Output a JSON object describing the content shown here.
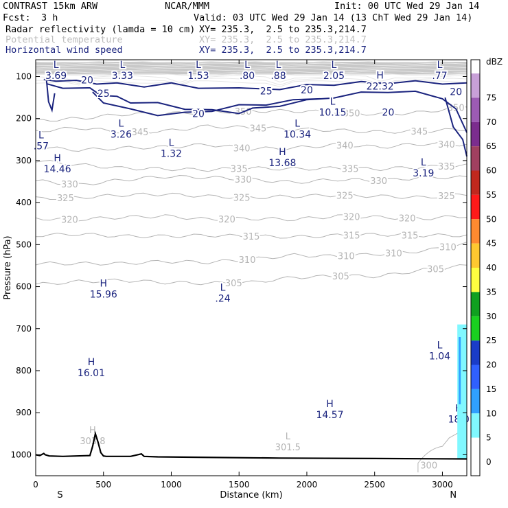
{
  "header": {
    "model": "CONTRAST 15km ARW",
    "source": "NCAR/MMM",
    "init": "Init: 00 UTC Wed 29 Jan 14",
    "fcst_label": "Fcst:",
    "fcst_value": "3 h",
    "valid": "Valid: 03 UTC Wed 29 Jan 14 (13 ChT Wed 29 Jan 14)",
    "fields": [
      {
        "name": "Radar reflectivity (lamda = 10 cm)",
        "xy": "XY= 235.3,  2.5 to 235.3,214.7",
        "color": "#000000"
      },
      {
        "name": "Potential temperature",
        "xy": "XY= 235.3,  2.5 to 235.3,214.7",
        "color": "#bdbdbd"
      },
      {
        "name": "Horizontal wind speed",
        "xy": "XY= 235.3,  2.5 to 235.3,214.7",
        "color": "#1a237e"
      }
    ]
  },
  "chart_data": {
    "type": "contour",
    "xlabel": "Distance (km)",
    "ylabel": "Pressure (hPa)",
    "xlim": [
      0,
      3180
    ],
    "ylim": [
      1050,
      60
    ],
    "x_ticks": [
      0,
      500,
      1000,
      1500,
      2000,
      2500,
      3000
    ],
    "y_ticks": [
      100,
      200,
      300,
      400,
      500,
      600,
      700,
      800,
      900,
      1000
    ],
    "direction_labels": {
      "left": "S",
      "right": "N"
    },
    "colorbar": {
      "unit": "dBZ",
      "levels": [
        {
          "label": "75",
          "color": "#c8a0d8"
        },
        {
          "label": "70",
          "color": "#9c5bb4"
        },
        {
          "label": "65",
          "color": "#7b2d8e"
        },
        {
          "label": "60",
          "color": "#a04060"
        },
        {
          "label": "55",
          "color": "#c0281e"
        },
        {
          "label": "50",
          "color": "#ff1a1a"
        },
        {
          "label": "45",
          "color": "#ff8a30"
        },
        {
          "label": "40",
          "color": "#ffc830"
        },
        {
          "label": "35",
          "color": "#ffff40"
        },
        {
          "label": "30",
          "color": "#10a020"
        },
        {
          "label": "25",
          "color": "#1ad020"
        },
        {
          "label": "20",
          "color": "#1a3cc8"
        },
        {
          "label": "15",
          "color": "#3060ff"
        },
        {
          "label": "10",
          "color": "#30a0ff"
        },
        {
          "label": "5",
          "color": "#80f8ff"
        },
        {
          "label": "0",
          "color": "#ffffff"
        }
      ]
    },
    "theta_isentropes": [
      {
        "level": 350,
        "p": [
          205,
          200,
          190,
          188,
          185,
          182,
          182,
          185,
          190,
          185,
          170
        ],
        "label_at": [
          1530,
          2330,
          3100
        ]
      },
      {
        "level": 345,
        "p": [
          230,
          222,
          232,
          230,
          218,
          222,
          225,
          228,
          232,
          230,
          225
        ],
        "label_at": [
          770,
          1640,
          2830
        ]
      },
      {
        "level": 340,
        "p": [
          268,
          275,
          270,
          268,
          262,
          272,
          270,
          262,
          268,
          260,
          262
        ],
        "label_at": [
          1520,
          2280,
          3030
        ]
      },
      {
        "level": 335,
        "p": [
          300,
          310,
          318,
          320,
          322,
          318,
          320,
          318,
          320,
          315,
          312
        ],
        "label_at": [
          1500,
          2320,
          3030
        ]
      },
      {
        "level": 330,
        "p": [
          348,
          358,
          346,
          338,
          340,
          345,
          352,
          345,
          348,
          340,
          340
        ],
        "label_at": [
          250,
          1530,
          2530
        ]
      },
      {
        "level": 325,
        "p": [
          390,
          388,
          382,
          380,
          385,
          388,
          385,
          382,
          385,
          388,
          380
        ],
        "label_at": [
          220,
          1520,
          2280,
          3030
        ]
      },
      {
        "level": 320,
        "p": [
          438,
          440,
          435,
          432,
          440,
          438,
          440,
          432,
          435,
          438,
          432
        ],
        "label_at": [
          250,
          1410,
          2330,
          2740
        ]
      },
      {
        "level": 315,
        "p": [
          478,
          475,
          480,
          480,
          478,
          480,
          482,
          478,
          476,
          478,
          478
        ],
        "label_at": [
          1590,
          2330,
          2760
        ]
      },
      {
        "level": 310,
        "p": [
          545,
          545,
          545,
          540,
          542,
          535,
          525,
          528,
          522,
          515,
          498
        ],
        "label_at": [
          1560,
          2290,
          2640,
          3040
        ]
      },
      {
        "level": 305,
        "p": [
          595,
          588,
          585,
          590,
          592,
          590,
          578,
          575,
          575,
          560,
          550
        ],
        "label_at": [
          1460,
          2250,
          2950
        ]
      },
      {
        "level": 300,
        "p": [
          1042,
          1042,
          1042,
          1042,
          1042,
          1042,
          1040,
          1035,
          1030,
          1025,
          1020
        ],
        "label_at": [
          2900
        ]
      }
    ],
    "wind_speed_contours": [
      {
        "level": 20,
        "points": [
          [
            60,
            110
          ],
          [
            150,
            108
          ],
          [
            300,
            112
          ],
          [
            450,
            115
          ],
          [
            600,
            118
          ],
          [
            800,
            122
          ],
          [
            1000,
            118
          ],
          [
            1200,
            125
          ],
          [
            1500,
            130
          ],
          [
            1800,
            128
          ],
          [
            2000,
            122
          ],
          [
            2200,
            118
          ],
          [
            2400,
            115
          ],
          [
            2600,
            114
          ],
          [
            2800,
            113
          ],
          [
            3000,
            115
          ],
          [
            3180,
            118
          ]
        ]
      },
      {
        "level": 25,
        "points": [
          [
            80,
            120
          ],
          [
            200,
            125
          ],
          [
            400,
            130
          ],
          [
            480,
            142
          ],
          [
            600,
            150
          ],
          [
            700,
            160
          ],
          [
            900,
            165
          ],
          [
            1100,
            175
          ],
          [
            1300,
            182
          ],
          [
            1500,
            185
          ],
          [
            1600,
            178
          ],
          [
            1800,
            168
          ],
          [
            2000,
            158
          ],
          [
            2200,
            148
          ],
          [
            2400,
            140
          ],
          [
            2600,
            135
          ],
          [
            2800,
            138
          ],
          [
            3000,
            150
          ],
          [
            3100,
            180
          ],
          [
            3180,
            230
          ]
        ]
      },
      {
        "level": 20,
        "points": [
          [
            420,
            140
          ],
          [
            500,
            160
          ],
          [
            700,
            180
          ],
          [
            900,
            190
          ],
          [
            1100,
            188
          ],
          [
            1300,
            180
          ],
          [
            1500,
            170
          ],
          [
            1700,
            165
          ],
          [
            1900,
            158
          ],
          [
            2100,
            150
          ]
        ]
      }
    ],
    "extrema": [
      {
        "type": "L",
        "value": "3.69"
      },
      {
        "type": "L",
        "value": "3.33"
      },
      {
        "type": "L",
        "value": "1.53"
      },
      {
        "type": "L",
        "value": ".80"
      },
      {
        "type": "L",
        "value": ".88"
      },
      {
        "type": "L",
        "value": "2.05"
      },
      {
        "type": "L",
        "value": ".77"
      },
      {
        "type": "H",
        "value": "22.32"
      },
      {
        "type": "L",
        "value": "10.15"
      },
      {
        "type": "L",
        "value": "3.26"
      },
      {
        "type": "L",
        "value": "10.34"
      },
      {
        "type": "L",
        "value": ".57"
      },
      {
        "type": "L",
        "value": "1.32"
      },
      {
        "type": "H",
        "value": "13.68"
      },
      {
        "type": "H",
        "value": "14.46"
      },
      {
        "type": "L",
        "value": "3.19"
      },
      {
        "type": "H",
        "value": "15.96"
      },
      {
        "type": "L",
        "value": ".24"
      },
      {
        "type": "L",
        "value": "1.04"
      },
      {
        "type": "H",
        "value": "16.01"
      },
      {
        "type": "H",
        "value": "14.57"
      },
      {
        "type": "H",
        "value": "18.0"
      }
    ],
    "wind_labels": [
      "20",
      "20",
      "25",
      "25",
      "20",
      "20",
      "20"
    ],
    "theta_extrema": [
      {
        "type": "L",
        "value": "301.5"
      },
      {
        "type": "H",
        "value": "303.8"
      }
    ],
    "terrain": {
      "x": [
        0,
        30,
        60,
        70,
        100,
        200,
        400,
        420,
        440,
        460,
        480,
        500,
        520,
        600,
        700,
        780,
        800,
        900,
        1200,
        1800,
        2500,
        3180
      ],
      "p": [
        1000,
        1002,
        997,
        1000,
        1003,
        1004,
        1002,
        980,
        950,
        970,
        995,
        1003,
        1004,
        1004,
        1004,
        998,
        1004,
        1005,
        1006,
        1008,
        1009,
        1010
      ]
    },
    "reflectivity_region": {
      "x_range": [
        3110,
        3180
      ],
      "p_range": [
        690,
        1010
      ],
      "levels": [
        "10",
        "5"
      ]
    }
  }
}
